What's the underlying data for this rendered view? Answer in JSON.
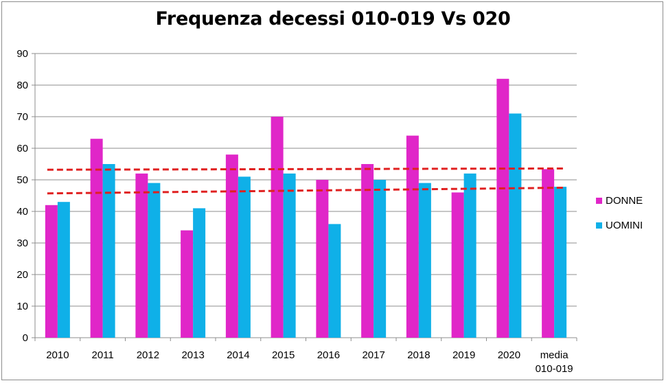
{
  "chart_data": {
    "type": "bar",
    "title": "Frequenza decessi 010-019 Vs 020",
    "categories": [
      "2010",
      "2011",
      "2012",
      "2013",
      "2014",
      "2015",
      "2016",
      "2017",
      "2018",
      "2019",
      "2020",
      "media\n010-019"
    ],
    "series": [
      {
        "name": "DONNE",
        "color": "#e026c8",
        "values": [
          42,
          63,
          52,
          34,
          58,
          70,
          50,
          55,
          64,
          46,
          82,
          53.4
        ]
      },
      {
        "name": "UOMINI",
        "color": "#0fb0e8",
        "values": [
          43,
          55,
          49,
          41,
          51,
          52,
          36,
          50,
          49,
          52,
          71,
          47.8
        ]
      }
    ],
    "trendlines": [
      {
        "series": "DONNE",
        "color": "#e02020",
        "style": "dashed",
        "start": 53.2,
        "end": 53.6
      },
      {
        "series": "UOMINI",
        "color": "#e02020",
        "style": "dashed",
        "start": 45.7,
        "end": 47.5
      }
    ],
    "ylim": [
      0,
      90
    ],
    "yticks": [
      0,
      10,
      20,
      30,
      40,
      50,
      60,
      70,
      80,
      90
    ],
    "grid": true,
    "legend_position": "right"
  }
}
